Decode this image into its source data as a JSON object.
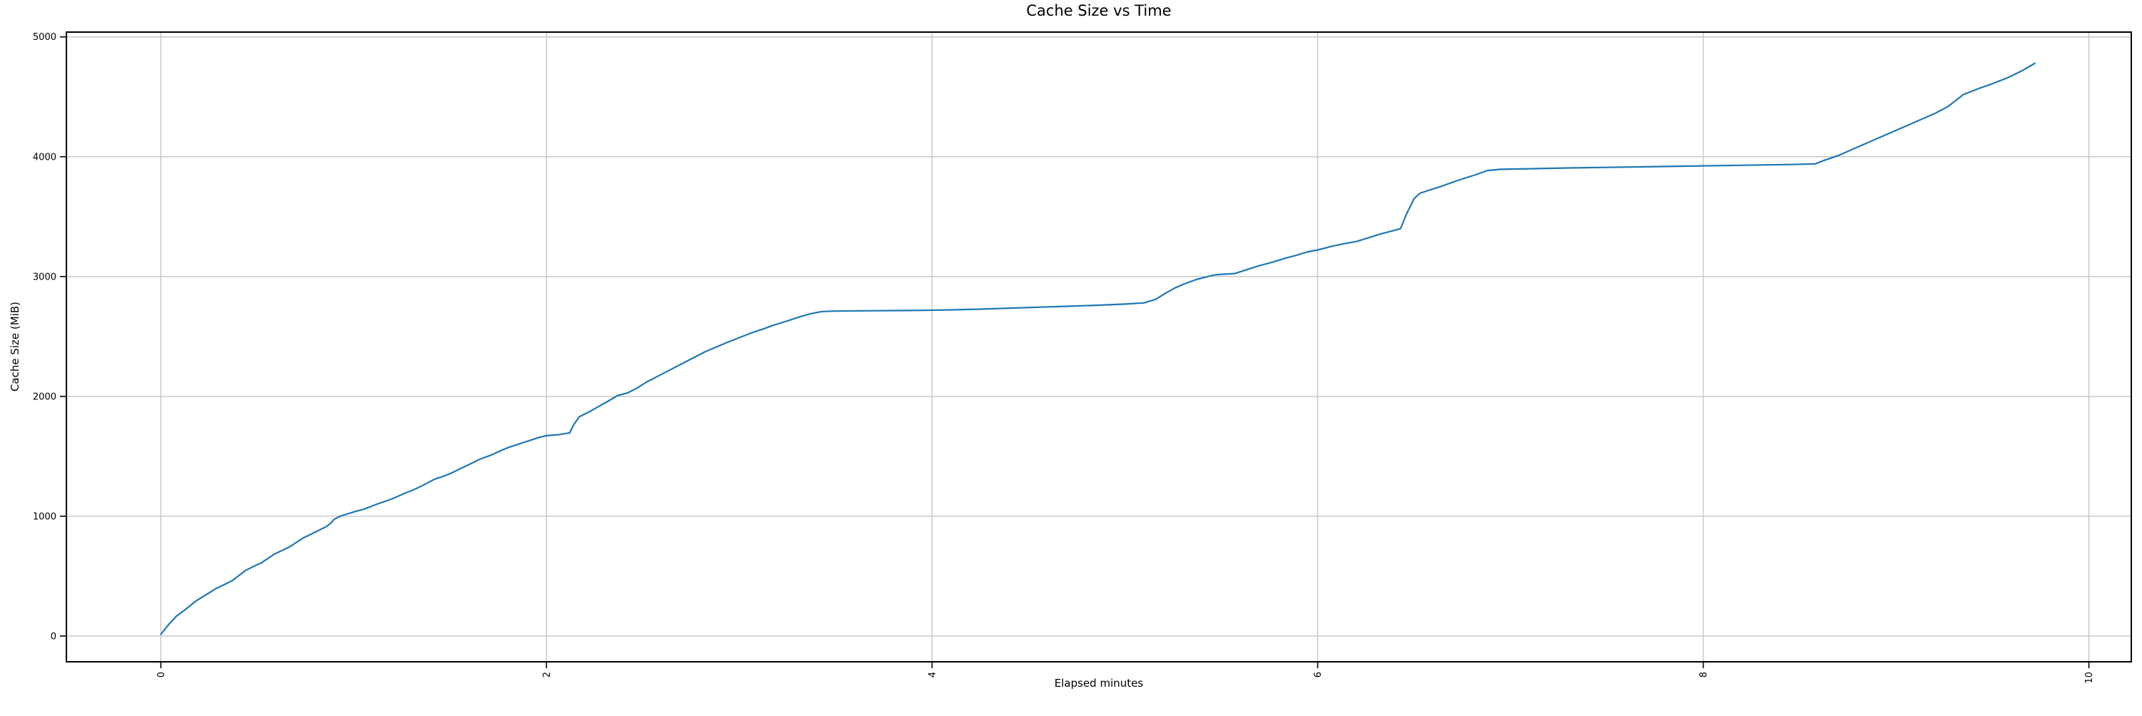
{
  "figure": {
    "background": "#ffffff",
    "text_color": "#000000"
  },
  "chart_data": {
    "type": "line",
    "title": "Cache Size vs Time",
    "xlabel": "Elapsed minutes",
    "ylabel": "Cache Size (MiB)",
    "x_ticks": [
      0,
      2,
      4,
      6,
      8,
      10
    ],
    "y_ticks": [
      0,
      1000,
      2000,
      3000,
      4000,
      5000
    ],
    "xlim": [
      -0.49,
      10.22
    ],
    "ylim": [
      -215,
      5040
    ],
    "grid": true,
    "grid_color": "#c9c9c9",
    "spine_color": "#000000",
    "x_tick_label_rotation_deg": 90,
    "legend": "none",
    "series": [
      {
        "name": "cache-size",
        "color": "#1f77b4",
        "points": [
          [
            0.0,
            15
          ],
          [
            0.04,
            95
          ],
          [
            0.08,
            165
          ],
          [
            0.13,
            225
          ],
          [
            0.18,
            290
          ],
          [
            0.23,
            340
          ],
          [
            0.29,
            400
          ],
          [
            0.33,
            430
          ],
          [
            0.37,
            462
          ],
          [
            0.44,
            548
          ],
          [
            0.48,
            580
          ],
          [
            0.52,
            610
          ],
          [
            0.59,
            685
          ],
          [
            0.63,
            715
          ],
          [
            0.67,
            747
          ],
          [
            0.74,
            820
          ],
          [
            0.78,
            850
          ],
          [
            0.82,
            883
          ],
          [
            0.86,
            915
          ],
          [
            0.88,
            940
          ],
          [
            0.9,
            975
          ],
          [
            0.93,
            1000
          ],
          [
            0.97,
            1020
          ],
          [
            1.01,
            1040
          ],
          [
            1.05,
            1057
          ],
          [
            1.12,
            1100
          ],
          [
            1.2,
            1145
          ],
          [
            1.27,
            1195
          ],
          [
            1.31,
            1220
          ],
          [
            1.35,
            1250
          ],
          [
            1.42,
            1310
          ],
          [
            1.46,
            1330
          ],
          [
            1.5,
            1355
          ],
          [
            1.57,
            1410
          ],
          [
            1.61,
            1440
          ],
          [
            1.65,
            1473
          ],
          [
            1.72,
            1515
          ],
          [
            1.76,
            1545
          ],
          [
            1.8,
            1572
          ],
          [
            1.88,
            1615
          ],
          [
            1.92,
            1635
          ],
          [
            1.96,
            1657
          ],
          [
            2.0,
            1672
          ],
          [
            2.06,
            1680
          ],
          [
            2.12,
            1695
          ],
          [
            2.14,
            1760
          ],
          [
            2.17,
            1830
          ],
          [
            2.22,
            1870
          ],
          [
            2.27,
            1915
          ],
          [
            2.32,
            1960
          ],
          [
            2.37,
            2008
          ],
          [
            2.42,
            2028
          ],
          [
            2.47,
            2070
          ],
          [
            2.52,
            2120
          ],
          [
            2.58,
            2170
          ],
          [
            2.64,
            2220
          ],
          [
            2.7,
            2270
          ],
          [
            2.76,
            2320
          ],
          [
            2.82,
            2370
          ],
          [
            2.88,
            2412
          ],
          [
            2.94,
            2452
          ],
          [
            3.0,
            2490
          ],
          [
            3.06,
            2528
          ],
          [
            3.12,
            2560
          ],
          [
            3.18,
            2595
          ],
          [
            3.25,
            2630
          ],
          [
            3.31,
            2662
          ],
          [
            3.37,
            2690
          ],
          [
            3.43,
            2708
          ],
          [
            3.5,
            2712
          ],
          [
            3.65,
            2714
          ],
          [
            3.8,
            2716
          ],
          [
            3.95,
            2718
          ],
          [
            4.1,
            2722
          ],
          [
            4.25,
            2728
          ],
          [
            4.4,
            2736
          ],
          [
            4.55,
            2744
          ],
          [
            4.7,
            2752
          ],
          [
            4.85,
            2760
          ],
          [
            5.0,
            2770
          ],
          [
            5.1,
            2780
          ],
          [
            5.16,
            2810
          ],
          [
            5.21,
            2860
          ],
          [
            5.26,
            2905
          ],
          [
            5.31,
            2940
          ],
          [
            5.37,
            2975
          ],
          [
            5.43,
            3000
          ],
          [
            5.47,
            3015
          ],
          [
            5.52,
            3020
          ],
          [
            5.57,
            3025
          ],
          [
            5.64,
            3062
          ],
          [
            5.7,
            3092
          ],
          [
            5.77,
            3122
          ],
          [
            5.83,
            3152
          ],
          [
            5.89,
            3178
          ],
          [
            5.95,
            3207
          ],
          [
            6.0,
            3222
          ],
          [
            6.08,
            3255
          ],
          [
            6.14,
            3275
          ],
          [
            6.2,
            3292
          ],
          [
            6.26,
            3322
          ],
          [
            6.32,
            3352
          ],
          [
            6.39,
            3382
          ],
          [
            6.43,
            3400
          ],
          [
            6.46,
            3520
          ],
          [
            6.5,
            3650
          ],
          [
            6.53,
            3695
          ],
          [
            6.58,
            3722
          ],
          [
            6.64,
            3752
          ],
          [
            6.7,
            3787
          ],
          [
            6.76,
            3820
          ],
          [
            6.82,
            3850
          ],
          [
            6.88,
            3885
          ],
          [
            6.95,
            3895
          ],
          [
            7.1,
            3900
          ],
          [
            7.3,
            3906
          ],
          [
            7.5,
            3911
          ],
          [
            7.7,
            3916
          ],
          [
            7.9,
            3921
          ],
          [
            8.1,
            3926
          ],
          [
            8.3,
            3931
          ],
          [
            8.45,
            3935
          ],
          [
            8.58,
            3940
          ],
          [
            8.62,
            3965
          ],
          [
            8.7,
            4010
          ],
          [
            8.8,
            4080
          ],
          [
            8.9,
            4150
          ],
          [
            9.0,
            4220
          ],
          [
            9.1,
            4290
          ],
          [
            9.2,
            4360
          ],
          [
            9.27,
            4420
          ],
          [
            9.31,
            4470
          ],
          [
            9.35,
            4520
          ],
          [
            9.43,
            4570
          ],
          [
            9.5,
            4610
          ],
          [
            9.58,
            4660
          ],
          [
            9.65,
            4715
          ],
          [
            9.7,
            4760
          ],
          [
            9.72,
            4780
          ]
        ]
      }
    ]
  }
}
